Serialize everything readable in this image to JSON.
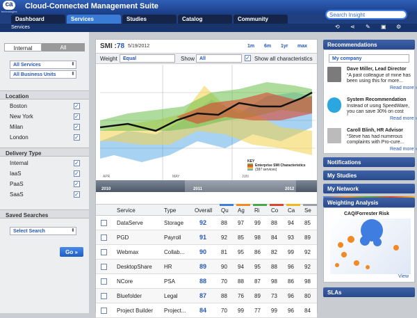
{
  "header": {
    "logo": "ca",
    "logo_sub": "technologies",
    "title": "Cloud-Connected Management Suite",
    "search_placeholder": "Search Insight",
    "nav": [
      "Dashboard",
      "Services",
      "Studies",
      "Catalog",
      "Community"
    ],
    "breadcrumb": "Services"
  },
  "sidebar": {
    "toggle": [
      "Internal",
      "All"
    ],
    "filters": [
      "All Services",
      "All Business Units"
    ],
    "sections": [
      {
        "title": "Location",
        "items": [
          "Boston",
          "New York",
          "Milan",
          "London"
        ]
      },
      {
        "title": "Delivery Type",
        "items": [
          "Internal",
          "IaaS",
          "PaaS",
          "SaaS"
        ]
      }
    ],
    "saved_searches": {
      "title": "Saved Searches",
      "select": "Select Search",
      "button": "Go »"
    }
  },
  "smi": {
    "label": "SMI :",
    "score": 78,
    "date": "5/19/2012",
    "ranges": [
      "1m",
      "6m",
      "1yr",
      "max"
    ],
    "weight_label": "Weight",
    "weight": "Equal",
    "show_label": "Show",
    "show": "All",
    "characteristics": "Show all characteristics",
    "months": [
      "APR",
      "MAY",
      "JUN"
    ],
    "key_title": "KEY",
    "key_text": "Enterprise SMI Characteristics",
    "key_sub": "(387 services)",
    "timeline": [
      "2010",
      "2011",
      "2012"
    ]
  },
  "table": {
    "columns": [
      "Service",
      "Type",
      "Overall",
      "Qu",
      "Ag",
      "Ri",
      "Co",
      "Ca",
      "Se"
    ],
    "rows": [
      [
        "DataServe",
        "Storage",
        92,
        88,
        97,
        99,
        88,
        94,
        85
      ],
      [
        "PGD",
        "Payroll",
        91,
        92,
        85,
        98,
        84,
        93,
        89
      ],
      [
        "Webmax",
        "Collab...",
        90,
        81,
        95,
        86,
        82,
        99,
        92
      ],
      [
        "DesktopShare",
        "HR",
        89,
        90,
        94,
        95,
        88,
        96,
        92
      ],
      [
        "NCore",
        "PSA",
        88,
        70,
        88,
        87,
        98,
        86,
        98
      ],
      [
        "Bluefolder",
        "Legal",
        87,
        88,
        76,
        89,
        73,
        96,
        80
      ],
      [
        "Project Builder",
        "Project...",
        84,
        70,
        99,
        77,
        99,
        96,
        84
      ]
    ]
  },
  "right": {
    "recommendations": {
      "title": "Recommendations",
      "select": "My company",
      "items": [
        {
          "name": "Dave Miller, Lead Director",
          "text": "“A past colleague of mine has been using this for more...",
          "link": "Read more »"
        },
        {
          "name": "System Recommendation",
          "text": "Instead of using SpeedWare, you can save 30% on cost for...",
          "link": "Read more »"
        },
        {
          "name": "Caroll Blinh, HR Advisor",
          "text": "“Steve has had numerous complaints with Pro-cure...",
          "link": "Read more »"
        }
      ]
    },
    "panels": [
      "Notifications",
      "My Studies",
      "My Network"
    ],
    "weighting": {
      "title": "Weighting Analysis",
      "chart_title": "CAQ/Forrester Risk",
      "link": "View"
    },
    "slas": "SLAs"
  }
}
